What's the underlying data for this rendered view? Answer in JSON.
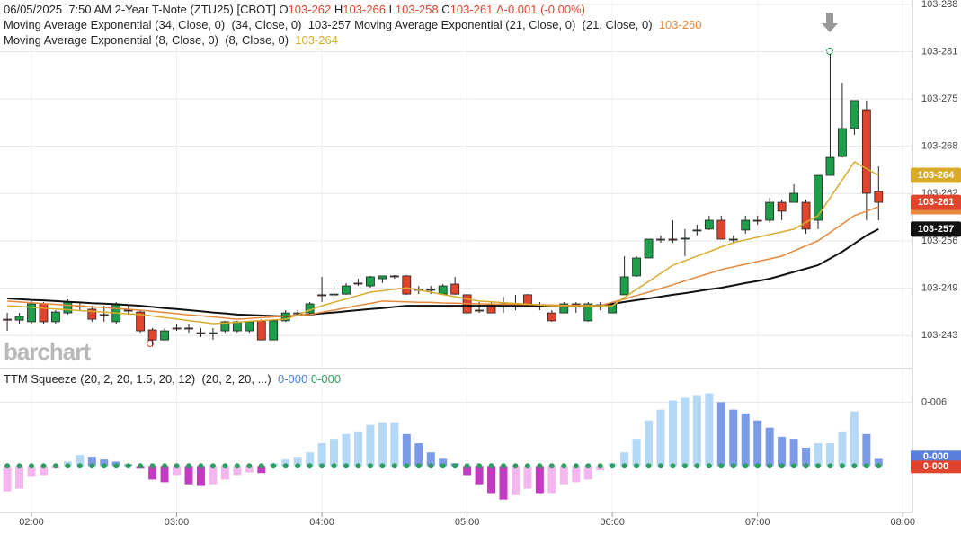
{
  "chart_data": [
    {
      "type": "candlestick",
      "title": {
        "date": "06/05/2025",
        "time": "7:50 AM",
        "symbol": "2-Year T-Note (ZTU25) [CBOT]",
        "ohlc": [
          {
            "key": "O",
            "value": "103-262"
          },
          {
            "key": "H",
            "value": "103-266"
          },
          {
            "key": "L",
            "value": "103-258"
          },
          {
            "key": "C",
            "value": "103-261"
          }
        ],
        "change": "Δ-0.001 (-0.00%)"
      },
      "watermark": "barchart",
      "up_color": "#1e9e4a",
      "down_color": "#e0442c",
      "grid": true,
      "xlim": [
        107,
        484
      ],
      "xticks": [
        {
          "value": 120,
          "label": "02:00"
        },
        {
          "value": 180,
          "label": "03:00"
        },
        {
          "value": 240,
          "label": "04:00"
        },
        {
          "value": 300,
          "label": "05:00"
        },
        {
          "value": 360,
          "label": "06:00"
        },
        {
          "value": 420,
          "label": "07:00"
        },
        {
          "value": 480,
          "label": "08:00"
        }
      ],
      "ylim": [
        103.7436,
        103.9019
      ],
      "yticks": [
        {
          "value": 103.9,
          "label": "103-288"
        },
        {
          "value": 103.8797,
          "label": "103-281"
        },
        {
          "value": 103.8594,
          "label": "103-275"
        },
        {
          "value": 103.8391,
          "label": "103-268"
        },
        {
          "value": 103.8188,
          "label": "103-262"
        },
        {
          "value": 103.7984,
          "label": "103-256"
        },
        {
          "value": 103.7781,
          "label": "103-249"
        },
        {
          "value": 103.7578,
          "label": "103-243"
        }
      ],
      "x": [
        110,
        115,
        120,
        125,
        130,
        135,
        140,
        145,
        150,
        155,
        160,
        165,
        170,
        175,
        180,
        185,
        190,
        195,
        200,
        205,
        210,
        215,
        220,
        225,
        230,
        235,
        240,
        245,
        250,
        255,
        260,
        265,
        270,
        275,
        280,
        285,
        290,
        295,
        300,
        305,
        310,
        315,
        320,
        325,
        330,
        335,
        340,
        345,
        350,
        355,
        360,
        365,
        370,
        375,
        380,
        385,
        390,
        395,
        400,
        405,
        410,
        415,
        420,
        425,
        430,
        435,
        440,
        445,
        450,
        455,
        460,
        465,
        470
      ],
      "open": [
        103.7648,
        103.7644,
        103.7637,
        103.7714,
        103.7637,
        103.7675,
        103.7706,
        103.7691,
        103.7668,
        103.7637,
        103.7687,
        103.7679,
        103.7602,
        103.7559,
        103.761,
        103.761,
        103.759,
        103.759,
        103.7598,
        103.7598,
        103.7598,
        103.7641,
        103.7559,
        103.7641,
        103.7675,
        103.7675,
        103.7753,
        103.7756,
        103.7756,
        103.7803,
        103.7791,
        103.7822,
        103.7834,
        103.7834,
        103.7776,
        103.7776,
        103.7756,
        103.7799,
        103.7753,
        103.7687,
        103.7714,
        103.7714,
        103.7714,
        103.7753,
        103.7706,
        103.7675,
        103.7675,
        103.7714,
        103.7641,
        103.7706,
        103.7675,
        103.7753,
        103.7834,
        103.7911,
        103.7992,
        103.7992,
        103.7992,
        103.8031,
        103.8035,
        103.8073,
        103.7992,
        103.8031,
        103.8073,
        103.8073,
        103.815,
        103.815,
        103.815,
        103.8073,
        103.8266,
        103.8347,
        103.8467,
        103.8548,
        103.8197
      ],
      "high": [
        103.7675,
        103.7675,
        103.7725,
        103.7722,
        103.7687,
        103.7733,
        103.7722,
        103.7706,
        103.7706,
        103.7722,
        103.7706,
        103.7687,
        103.761,
        103.761,
        103.7629,
        103.7629,
        103.761,
        103.761,
        103.7641,
        103.7641,
        103.7641,
        103.7648,
        103.7648,
        103.7687,
        103.7687,
        103.7722,
        103.783,
        103.7791,
        103.7803,
        103.7822,
        103.7834,
        103.7834,
        103.7838,
        103.7838,
        103.7791,
        103.7791,
        103.7799,
        103.783,
        103.7756,
        103.7722,
        103.7722,
        103.7744,
        103.7753,
        103.7756,
        103.7722,
        103.7687,
        103.7722,
        103.7722,
        103.7722,
        103.7722,
        103.7722,
        103.7919,
        103.7919,
        103.7992,
        103.8008,
        103.8073,
        103.8035,
        103.8054,
        103.8093,
        103.8093,
        103.8008,
        103.8093,
        103.8093,
        103.817,
        103.8162,
        103.8228,
        103.8162,
        103.8266,
        103.8788,
        103.8664,
        103.8587,
        103.8587,
        103.8305
      ],
      "low": [
        103.7598,
        103.7629,
        103.7629,
        103.7629,
        103.7629,
        103.7668,
        103.7687,
        103.7637,
        103.7637,
        103.7629,
        103.7668,
        103.759,
        103.7532,
        103.7559,
        103.7598,
        103.759,
        103.7571,
        103.7559,
        103.759,
        103.759,
        103.759,
        103.7559,
        103.7559,
        103.7637,
        103.7668,
        103.7668,
        103.7722,
        103.7744,
        103.7753,
        103.7791,
        103.7783,
        103.7803,
        103.7822,
        103.7753,
        103.7756,
        103.7756,
        103.7753,
        103.7753,
        103.7668,
        103.7675,
        103.7675,
        103.7675,
        103.7687,
        103.7706,
        103.7687,
        103.7637,
        103.7675,
        103.7675,
        103.7637,
        103.7687,
        103.7675,
        103.7753,
        103.783,
        103.7911,
        103.7977,
        103.7977,
        103.7919,
        103.8008,
        103.8031,
        103.7992,
        103.7977,
        103.8015,
        103.8054,
        103.8062,
        103.8073,
        103.815,
        103.8015,
        103.8035,
        103.8266,
        103.8343,
        103.844,
        103.8073,
        103.8073
      ],
      "close": [
        103.7644,
        103.766,
        103.7714,
        103.7637,
        103.7679,
        103.7722,
        103.7702,
        103.7648,
        103.7664,
        103.7714,
        103.7683,
        103.7598,
        103.7559,
        103.7598,
        103.7606,
        103.7606,
        103.7586,
        103.759,
        103.7637,
        103.7637,
        103.7637,
        103.7559,
        103.7641,
        103.7675,
        103.7671,
        103.7714,
        103.7749,
        103.7756,
        103.7791,
        103.7799,
        103.783,
        103.7834,
        103.783,
        103.7756,
        103.7772,
        103.7776,
        103.7791,
        103.7756,
        103.7675,
        103.7683,
        103.7675,
        103.771,
        103.7714,
        103.7714,
        103.7702,
        103.7641,
        103.7714,
        103.771,
        103.7714,
        103.771,
        103.7714,
        103.783,
        103.7911,
        103.7992,
        103.7988,
        103.7988,
        103.7996,
        103.8031,
        103.8073,
        103.7992,
        103.7992,
        103.8073,
        103.8069,
        103.815,
        103.8112,
        103.8189,
        103.8035,
        103.8266,
        103.8343,
        103.8467,
        103.8587,
        103.8189,
        103.815
      ],
      "series": [
        {
          "name": "Moving Average Exponential",
          "params": "(34, Close, 0)",
          "params_short": "(34, Close, 0)",
          "last_label": "103-257",
          "color": "#111111",
          "values": [
            103.7737,
            103.7734,
            103.7731,
            103.7729,
            103.7726,
            103.7723,
            103.772,
            103.7717,
            103.7715,
            103.7712,
            103.7709,
            103.7706,
            103.7701,
            103.7696,
            103.7692,
            103.7687,
            103.7682,
            103.7677,
            103.7673,
            103.7668,
            103.7666,
            103.7664,
            103.7662,
            103.766,
            103.7664,
            103.7668,
            103.7673,
            103.7677,
            103.7682,
            103.7687,
            103.7692,
            103.7696,
            103.7701,
            103.7706,
            103.7706,
            103.7706,
            103.7706,
            103.7706,
            103.7706,
            103.7706,
            103.7706,
            103.7706,
            103.7706,
            103.7706,
            103.7706,
            103.7706,
            103.7706,
            103.7706,
            103.7706,
            103.7706,
            103.7714,
            103.7722,
            103.773,
            103.7737,
            103.7745,
            103.7753,
            103.776,
            103.7768,
            103.7776,
            103.7783,
            103.7793,
            103.7803,
            103.7812,
            103.7822,
            103.7836,
            103.7851,
            103.7865,
            103.788,
            103.7909,
            103.7938,
            103.7973,
            103.8008,
            103.8035
          ]
        },
        {
          "name": "Moving Average Exponential",
          "params": "(21, Close, 0)",
          "params_short": "(21, Close, 0)",
          "last_label": "103-260",
          "color": "#e8883a",
          "values": [
            103.7726,
            103.7722,
            103.7719,
            103.7715,
            103.7712,
            103.7708,
            103.7705,
            103.7701,
            103.7698,
            103.7694,
            103.7691,
            103.7687,
            103.7682,
            103.7677,
            103.7672,
            103.7667,
            103.7663,
            103.7658,
            103.7653,
            103.7648,
            103.7651,
            103.7655,
            103.7658,
            103.7661,
            103.7665,
            103.7668,
            103.7678,
            103.7687,
            103.7697,
            103.7707,
            103.7716,
            103.7726,
            103.7724,
            103.7723,
            103.7721,
            103.772,
            103.7718,
            103.7717,
            103.7715,
            103.7714,
            103.7713,
            103.7712,
            103.7712,
            103.7711,
            103.771,
            103.7709,
            103.7708,
            103.7708,
            103.7707,
            103.7706,
            103.7721,
            103.7735,
            103.775,
            103.7764,
            103.778,
            103.7796,
            103.7813,
            103.7829,
            103.7845,
            103.7861,
            103.7873,
            103.7884,
            103.7896,
            103.7907,
            103.7919,
            103.7941,
            103.7963,
            103.7985,
            103.8021,
            103.8057,
            103.8093,
            103.8112,
            103.8131
          ]
        },
        {
          "name": "Moving Average Exponential",
          "params": "(8, Close, 0)",
          "params_short": "(8, Close, 0)",
          "last_label": "103-264",
          "color": "#d8ac2a",
          "values": [
            103.7706,
            103.7703,
            103.7699,
            103.7696,
            103.7692,
            103.7689,
            103.7685,
            103.7682,
            103.7678,
            103.7675,
            103.7671,
            103.7668,
            103.7662,
            103.7655,
            103.7649,
            103.7642,
            103.7636,
            103.7629,
            103.7632,
            103.7635,
            103.7639,
            103.7642,
            103.7645,
            103.7648,
            103.7667,
            103.7687,
            103.7706,
            103.7721,
            103.7735,
            103.775,
            103.7764,
            103.777,
            103.7777,
            103.7783,
            103.7773,
            103.7764,
            103.7754,
            103.7745,
            103.7735,
            103.7726,
            103.7723,
            103.7719,
            103.7716,
            103.7713,
            103.7709,
            103.7706,
            103.7706,
            103.7706,
            103.7706,
            103.7706,
            103.7706,
            103.7741,
            103.7776,
            103.781,
            103.7845,
            103.788,
            103.7899,
            103.7919,
            103.7938,
            103.7958,
            103.7977,
            103.7989,
            103.8,
            103.8012,
            103.8023,
            103.8035,
            103.8064,
            103.8093,
            103.817,
            103.8247,
            103.8324,
            103.8295,
            103.8266
          ]
        }
      ]
    },
    {
      "type": "bar",
      "name": "TTM Squeeze",
      "params": "(20, 2, 20, 1.5, 20, 12)",
      "params_short": "(20, 2, 20, ...)",
      "legend_values": [
        {
          "label": "0-000",
          "color": "#4a7fd4"
        },
        {
          "label": "0-000",
          "color": "#2e9e5e"
        }
      ],
      "badges": [
        {
          "label": "0-000",
          "color": "#5b7fdc"
        },
        {
          "label": "0-000",
          "color": "#e0442c"
        }
      ],
      "colors": {
        "up_rising": "#b5d8f7",
        "up_falling": "#7b9be8",
        "down_falling": "#c23bc2",
        "down_rising": "#f4b6ef"
      },
      "dot_color": "#2e9e5e",
      "ylim": [
        -0.0137,
        0.0287
      ],
      "yticks": [
        {
          "value": 0.0188,
          "label": "0-006"
        }
      ],
      "values": [
        -0.0075,
        -0.0067,
        -0.0032,
        -0.0027,
        -0.0008,
        0.0013,
        0.0032,
        0.0027,
        0.0019,
        0.0013,
        0.0005,
        -0.0008,
        -0.004,
        -0.0048,
        -0.0027,
        -0.0054,
        -0.0059,
        -0.0054,
        -0.004,
        -0.0027,
        -0.0019,
        -0.0021,
        0.0008,
        0.0019,
        0.0027,
        0.004,
        0.0067,
        0.008,
        0.0094,
        0.0102,
        0.0121,
        0.0129,
        0.0129,
        0.0094,
        0.0067,
        0.004,
        0.0021,
        0.0008,
        -0.0027,
        -0.0054,
        -0.008,
        -0.0099,
        -0.0086,
        -0.0067,
        -0.008,
        -0.008,
        -0.0054,
        -0.0048,
        -0.004,
        -0.0013,
        0.0008,
        0.004,
        0.008,
        0.0134,
        0.0166,
        0.0193,
        0.0201,
        0.0209,
        0.0214,
        0.0188,
        0.0166,
        0.0155,
        0.0134,
        0.0113,
        0.0086,
        0.008,
        0.0054,
        0.0067,
        0.0067,
        0.0102,
        0.0161,
        0.0094,
        0.0021
      ]
    }
  ]
}
